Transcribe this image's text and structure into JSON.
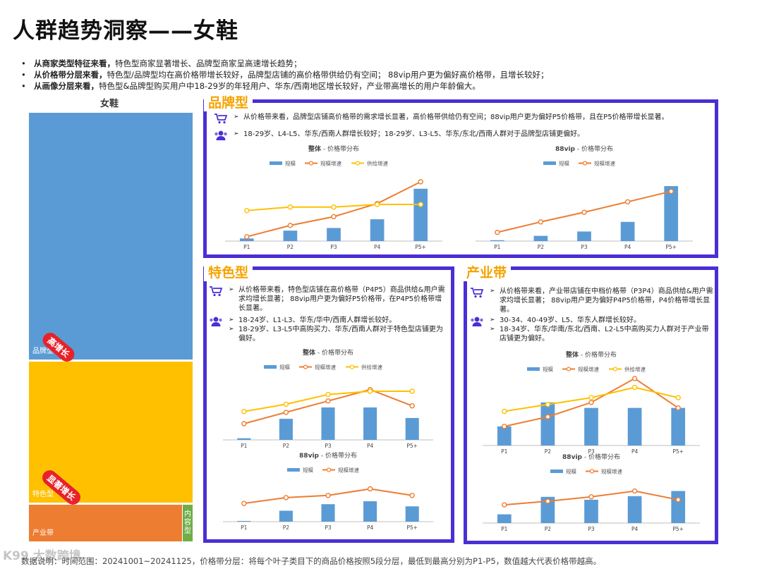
{
  "page_title": "人群趋势洞察——女鞋",
  "summary": [
    {
      "bold": "从商家类型特征来看，",
      "text": "特色型商家显著增长、品牌型商家呈高速增长趋势；"
    },
    {
      "bold": "从价格带分层来看，",
      "text": "特色型/品牌型均在高价格带增长较好，品牌型店铺的高价格带供给仍有空间；  88vip用户更为偏好高价格带，且增长较好；"
    },
    {
      "bold": "从画像分层来看，",
      "text": "特色型&品牌型购买用户中18-29岁的年轻用户、华东/西南地区增长较好，产业带高增长的用户年龄偏大。"
    }
  ],
  "treemap": {
    "title": "女鞋",
    "tiles": [
      {
        "label": "品牌型",
        "color": "#5b9bd5"
      },
      {
        "label": "特色型",
        "color": "#ffc000"
      },
      {
        "label": "产业带",
        "color": "#ed7d31"
      },
      {
        "label": "内容型",
        "color": "#70ad47"
      }
    ],
    "badges": [
      "高增长",
      "显著增长"
    ]
  },
  "icons": {
    "cart": "shopping-cart-icon",
    "people": "user-group-icon"
  },
  "colors": {
    "scale": "#5b9bd5",
    "scale_growth": "#ed7d31",
    "supply_growth": "#ffc000",
    "panel_border": "#4b2ed4",
    "tab_text": "#f5a300"
  },
  "panels": {
    "brand": {
      "tab": "品牌型",
      "price_note": [
        "从价格带来看，品牌型店铺高价格带的需求增长显著，高价格带供给仍有空间；88vip用户更为偏好P5价格带，且在P5价格带增长显著。"
      ],
      "people_note": [
        "18-29岁、L4-L5、华东/西南人群增长较好；18-29岁、L3-L5、华东/东北/西南人群对于品牌型店铺更偏好。"
      ]
    },
    "feature": {
      "tab": "特色型",
      "price_note": [
        "从价格带来看，特色型店铺在高价格带（P4P5）商品供给&用户需求均增长显著；  88vip用户更为偏好P5价格带，在P4P5价格带增长显著。"
      ],
      "people_note": [
        "18-24岁、L1-L3、华东/华中/西南人群增长较好。",
        "18-29岁、L3-L5中高购买力、华东/西南人群对于特色型店铺更为偏好。"
      ]
    },
    "industry": {
      "tab": "产业带",
      "price_note": [
        "从价格带来看，产业带店铺在中档价格带（P3P4）商品供给&用户需求均增长显著；  88vip用户更为偏好P4P5价格带，P4价格带增长显著。"
      ],
      "people_note": [
        "30-34、40-49岁、L5、华东人群增长较好。",
        "18-34岁、华东/华南/东北/西南、L2-L5中高购买力人群对于产业带店铺更为偏好。"
      ]
    }
  },
  "chart_data": [
    {
      "id": "brand-overall",
      "type": "bar",
      "title_bold": "整体",
      "title_rest": " - 价格带分布",
      "categories": [
        "P1",
        "P2",
        "P3",
        "P4",
        "P5+"
      ],
      "series": [
        {
          "name": "规模",
          "type": "bar",
          "values": [
            3,
            12,
            15,
            25,
            60
          ]
        },
        {
          "name": "规模增速",
          "type": "line",
          "values": [
            5,
            18,
            28,
            43,
            68
          ]
        },
        {
          "name": "供给增速",
          "type": "line",
          "values": [
            35,
            39,
            39,
            42,
            42
          ]
        }
      ],
      "ylim": [
        0,
        80
      ]
    },
    {
      "id": "brand-88vip",
      "type": "bar",
      "title_bold": "88vip",
      "title_rest": " - 价格带分布",
      "categories": [
        "P1",
        "P2",
        "P3",
        "P4",
        "P5+"
      ],
      "series": [
        {
          "name": "规模",
          "type": "bar",
          "values": [
            1,
            6,
            11,
            22,
            63
          ]
        },
        {
          "name": "规模增速",
          "type": "line",
          "values": [
            10,
            22,
            33,
            45,
            57
          ]
        }
      ],
      "ylim": [
        0,
        80
      ]
    },
    {
      "id": "feature-overall",
      "type": "bar",
      "title_bold": "整体",
      "title_rest": " - 价格带分布",
      "categories": [
        "P1",
        "P2",
        "P3",
        "P4",
        "P5+"
      ],
      "series": [
        {
          "name": "规模",
          "type": "bar",
          "values": [
            2,
            26,
            40,
            40,
            27
          ]
        },
        {
          "name": "规模增速",
          "type": "line",
          "values": [
            20,
            34,
            48,
            62,
            42
          ]
        },
        {
          "name": "供给增速",
          "type": "line",
          "values": [
            35,
            44,
            56,
            60,
            60
          ]
        }
      ],
      "ylim": [
        0,
        80
      ]
    },
    {
      "id": "feature-88vip",
      "type": "bar",
      "title_bold": "88vip",
      "title_rest": " - 价格带分布",
      "categories": [
        "P1",
        "P2",
        "P3",
        "P4",
        "P5+"
      ],
      "series": [
        {
          "name": "规模",
          "type": "bar",
          "values": [
            1,
            15,
            24,
            28,
            21
          ]
        },
        {
          "name": "规模增速",
          "type": "line",
          "values": [
            25,
            33,
            36,
            45,
            36
          ]
        }
      ],
      "ylim": [
        0,
        60
      ]
    },
    {
      "id": "industry-overall",
      "type": "bar",
      "title_bold": "整体",
      "title_rest": " - 价格带分布",
      "categories": [
        "P1",
        "P2",
        "P3",
        "P4",
        "P5+"
      ],
      "series": [
        {
          "name": "规模",
          "type": "bar",
          "values": [
            28,
            63,
            55,
            55,
            55
          ]
        },
        {
          "name": "规模增速",
          "type": "line",
          "values": [
            28,
            42,
            63,
            98,
            55
          ]
        },
        {
          "name": "供给增速",
          "type": "line",
          "values": [
            50,
            60,
            70,
            85,
            70
          ]
        }
      ],
      "ylim": [
        0,
        100
      ]
    },
    {
      "id": "industry-88vip",
      "type": "bar",
      "title_bold": "88vip",
      "title_rest": " - 价格带分布",
      "categories": [
        "P1",
        "P2",
        "P3",
        "P4",
        "P5+"
      ],
      "series": [
        {
          "name": "规模",
          "type": "bar",
          "values": [
            12,
            36,
            32,
            37,
            44
          ]
        },
        {
          "name": "规模增速",
          "type": "line",
          "values": [
            25,
            30,
            36,
            44,
            32
          ]
        }
      ],
      "ylim": [
        0,
        60
      ]
    }
  ],
  "footnote": "数据说明：时间范围：20241001~20241125，价格带分层：将每个叶子类目下的商品价格按照5段分层，最低到最高分别为P1-P5，数值越大代表价格带越高。",
  "watermark": "K99 大数跨境"
}
